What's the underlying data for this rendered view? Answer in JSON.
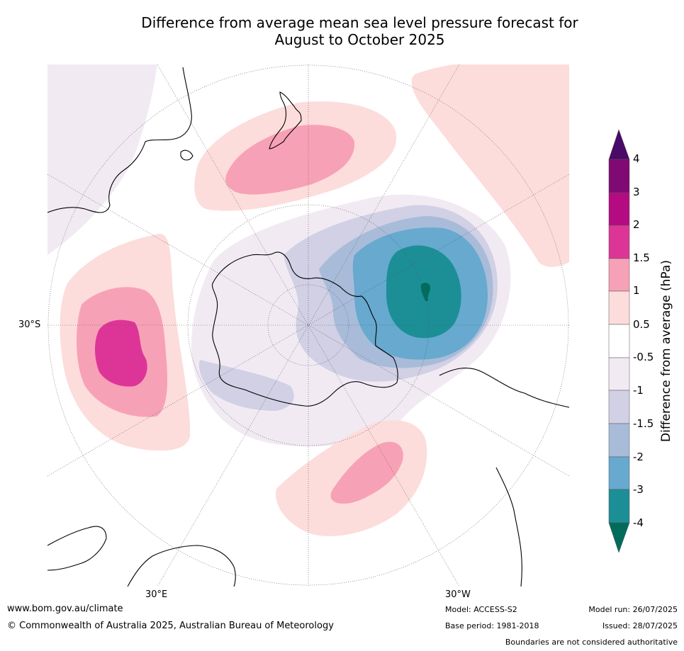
{
  "title": {
    "line1": "Difference from average mean sea level pressure forecast for",
    "line2": "August to October 2025"
  },
  "map": {
    "lat_labels": {
      "left": "30°S",
      "bottom_left": "30°E",
      "bottom_right": "30°W"
    }
  },
  "colorbar": {
    "label": "Difference from average (hPa)",
    "ticks": [
      "4",
      "3",
      "2",
      "1.5",
      "1",
      "0.5",
      "-0.5",
      "-1",
      "-1.5",
      "-2",
      "-3",
      "-4"
    ],
    "colors": {
      "above_4": "#4a0a68",
      "3_to_4": "#7f0a73",
      "2_to_3": "#b40b82",
      "1.5_to_2": "#dd3597",
      "1_to_1.5": "#f7a1b6",
      "0.5_to_1": "#fcdddb",
      "neutral": "#ffffff",
      "-1_to_-0.5": "#f1eaf3",
      "-1.5_to_-1": "#d1d0e4",
      "-2_to_-1.5": "#a8bcd9",
      "-3_to_-2": "#67a9cf",
      "-4_to_-3": "#1c8f96",
      "below_-4": "#016c5c"
    }
  },
  "footer": {
    "website": "www.bom.gov.au/climate",
    "copyright": "© Commonwealth of Australia 2025, Australian Bureau of Meteorology",
    "model": "Model: ACCESS-S2",
    "base_period": "Base period: 1981-2018",
    "model_run": "Model run: 26/07/2025",
    "issued": "Issued: 28/07/2025",
    "disclaimer": "Boundaries are not considered authoritative"
  }
}
